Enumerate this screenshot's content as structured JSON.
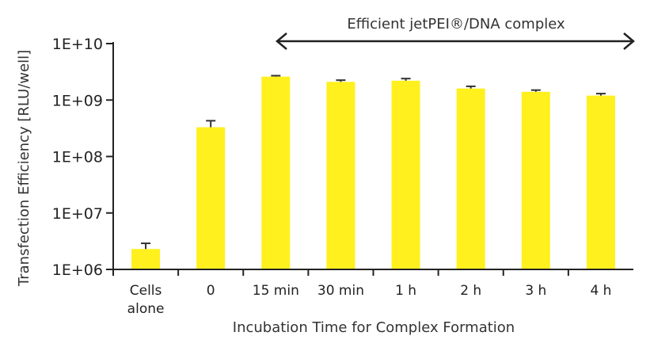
{
  "chart_data": {
    "type": "bar",
    "title": "",
    "annotation": "Efficient jetPEI®/DNA complex",
    "xlabel": "Incubation Time for Complex Formation",
    "ylabel": "Transfection Efficiency [RLU/well]",
    "yscale": "log",
    "ylim": [
      1000000,
      10000000000
    ],
    "yticks": [
      "1E+06",
      "1E+07",
      "1E+08",
      "1E+09",
      "1E+10"
    ],
    "categories": [
      [
        "Cells",
        "alone"
      ],
      [
        "0"
      ],
      [
        "15 min"
      ],
      [
        "30 min"
      ],
      [
        "1 h"
      ],
      [
        "2 h"
      ],
      [
        "3 h"
      ],
      [
        "4 h"
      ]
    ],
    "values": [
      2300000,
      330000000,
      2600000000,
      2100000000,
      2200000000,
      1600000000,
      1400000000,
      1200000000
    ],
    "error_upper": [
      2900000,
      430000000,
      2700000000,
      2250000000,
      2400000000,
      1750000000,
      1500000000,
      1300000000
    ],
    "bar_color": "#fff01e",
    "grid": false
  }
}
